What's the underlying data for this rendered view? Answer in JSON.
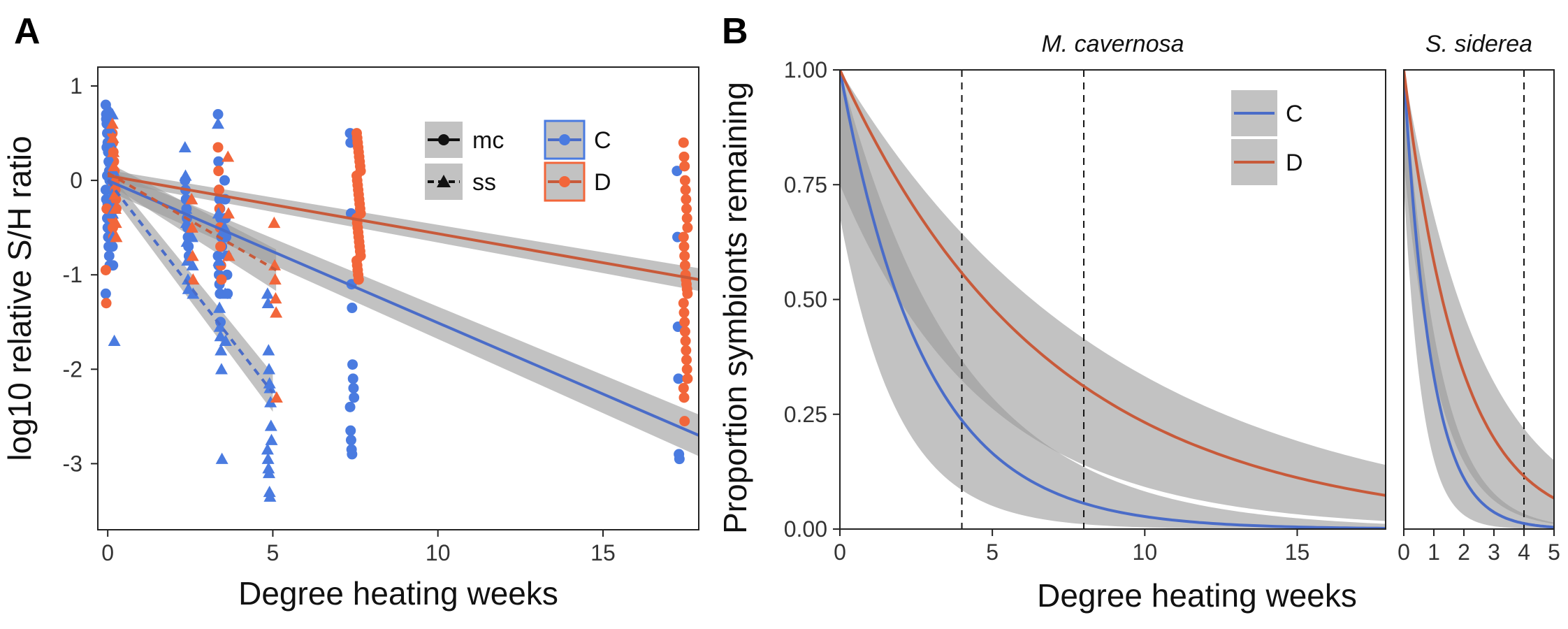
{
  "figure": {
    "panel_a_letter": "A",
    "panel_b_letter": "B"
  },
  "colors": {
    "C": "#4a6cc8",
    "D": "#c85a3a",
    "C_point": "#4a7be0",
    "D_point": "#f2663a",
    "ribbon": "#9a9a9a"
  },
  "chart_data": [
    {
      "id": "A",
      "type": "scatter",
      "title": "",
      "xlabel": "Degree heating weeks",
      "ylabel": "log10 relative S/H ratio",
      "xlim": [
        -0.3,
        17.9
      ],
      "ylim": [
        -3.7,
        1.2
      ],
      "x_ticks": [
        0,
        5,
        10,
        15
      ],
      "y_ticks": [
        1,
        0,
        -1,
        -2,
        -3
      ],
      "grid": false,
      "legend": {
        "placement": "top-right",
        "shape_entries": [
          {
            "label": "mc",
            "line": "solid",
            "marker": "circle"
          },
          {
            "label": "ss",
            "line": "dashed",
            "marker": "triangle"
          }
        ],
        "color_entries": [
          {
            "label": "C",
            "color_key": "C"
          },
          {
            "label": "D",
            "color_key": "D"
          }
        ]
      },
      "points": {
        "C_mc": [
          {
            "x": 0,
            "y": [
              0.8,
              0.7,
              0.6,
              0.5,
              0.4,
              0.3,
              0.2,
              0.1,
              0,
              -0.1,
              -0.2,
              -0.3,
              -0.4,
              -0.5,
              -0.6,
              -0.7,
              -0.8,
              -0.9,
              -1.2,
              0.65,
              0.35,
              0.05,
              -0.25
            ]
          },
          {
            "x": 0.1,
            "y": [
              0.7,
              0.5,
              0.3,
              0.1,
              -0.1,
              -0.3,
              -0.5,
              -0.7,
              -0.9
            ]
          },
          {
            "x": 2.4,
            "y": [
              0,
              -0.1,
              -0.2,
              -0.3,
              -0.4,
              -0.5,
              -0.6,
              -0.7,
              -0.8
            ]
          },
          {
            "x": 3.4,
            "y": [
              0.7,
              0.2,
              -0.1,
              -0.2,
              -0.3,
              -0.4,
              -0.5,
              -0.6,
              -0.7,
              -0.8,
              -0.9,
              -1.0,
              -1.1,
              -1.2,
              -1.5
            ]
          },
          {
            "x": 3.6,
            "y": [
              0,
              -0.2,
              -0.4,
              -0.6,
              -0.8,
              -1.0,
              -1.2
            ]
          },
          {
            "x": 7.4,
            "y": [
              0.5,
              0.4,
              -0.35,
              -1.1,
              -1.35,
              -1.95,
              -2.1,
              -2.2,
              -2.3,
              -2.4,
              -2.65,
              -2.75,
              -2.85,
              -2.9
            ]
          },
          {
            "x": 17.3,
            "y": [
              0.1,
              -0.6,
              -1.55,
              -2.1,
              -2.9,
              -2.95
            ]
          }
        ],
        "D_mc": [
          {
            "x": 0.2,
            "y": [
              0.5,
              0.4,
              0.3,
              0.2,
              0.1,
              0,
              -0.1,
              -0.2,
              -0.3,
              -0.4,
              -0.5,
              -0.6
            ]
          },
          {
            "x": 0,
            "y": [
              -0.95,
              -1.3,
              -0.3
            ]
          },
          {
            "x": 3.4,
            "y": [
              0.35,
              0.1,
              -0.1,
              -0.3,
              -0.5,
              -0.7,
              -0.9,
              -1.05
            ]
          },
          {
            "x": 7.6,
            "y": [
              0.5,
              0.45,
              0.4,
              0.35,
              0.3,
              0.25,
              0.2,
              0.15,
              0.1,
              0.05,
              0,
              -0.05,
              -0.1,
              -0.15,
              -0.2,
              -0.25,
              -0.3,
              -0.35,
              -0.4,
              -0.45,
              -0.5,
              -0.55,
              -0.6,
              -0.65,
              -0.7,
              -0.75,
              -0.8,
              -0.85,
              -0.9,
              -0.95,
              -1.0,
              -1.05
            ]
          },
          {
            "x": 17.5,
            "y": [
              0.4,
              0.25,
              0.15,
              0.0,
              -0.1,
              -0.2,
              -0.3,
              -0.4,
              -0.5,
              -0.6,
              -0.7,
              -0.8,
              -0.9,
              -1.0,
              -1.05,
              -1.1,
              -1.15,
              -1.2,
              -1.3,
              -1.4,
              -1.5,
              -1.6,
              -1.7,
              -1.8,
              -1.9,
              -2.0,
              -2.1,
              -2.2,
              -2.3,
              -2.55
            ]
          }
        ],
        "C_ss": [
          {
            "x": 0.1,
            "y": [
              0.75,
              0.65,
              0.55,
              0.4,
              0.2,
              0.05,
              -0.15,
              -0.35,
              -0.6
            ]
          },
          {
            "x": 0.2,
            "y": [
              0.7,
              0.45,
              0.1,
              -0.3,
              -1.7
            ]
          },
          {
            "x": 2.4,
            "y": [
              0.35,
              0.05,
              -0.3,
              -0.45,
              -0.65,
              -0.85,
              -1.05,
              -1.15
            ]
          },
          {
            "x": 2.6,
            "y": [
              -0.2,
              -0.6,
              -0.9,
              -1.2
            ]
          },
          {
            "x": 3.4,
            "y": [
              0.6,
              -0.35,
              -0.85,
              -1.35,
              -1.55,
              -1.65,
              -1.8,
              -2.0,
              -2.95
            ]
          },
          {
            "x": 3.6,
            "y": [
              -0.5,
              -1.2,
              -1.7
            ]
          },
          {
            "x": 4.9,
            "y": [
              -1.2,
              -1.3,
              -1.8,
              -2.0,
              -2.15,
              -2.2,
              -2.35,
              -2.6,
              -2.75,
              -2.85,
              -2.95,
              -3.05,
              -3.1,
              -3.3,
              -3.35
            ]
          }
        ],
        "D_ss": [
          {
            "x": 0.2,
            "y": [
              0.6,
              0.45,
              0.3,
              0.15,
              0,
              -0.15,
              -0.3,
              -0.45,
              -0.6
            ]
          },
          {
            "x": 2.6,
            "y": [
              -0.2,
              -0.5,
              -0.8,
              -1.05
            ]
          },
          {
            "x": 3.7,
            "y": [
              0.25,
              -0.35,
              -0.8
            ]
          },
          {
            "x": 5.1,
            "y": [
              -0.45,
              -0.9,
              -1.05,
              -1.25,
              -1.4,
              -2.3
            ]
          }
        ]
      },
      "fits": [
        {
          "group": "D_mc",
          "line": "solid",
          "x": [
            0,
            17.9
          ],
          "y": [
            0.05,
            -1.05
          ],
          "band": 0.12
        },
        {
          "group": "C_mc",
          "line": "solid",
          "x": [
            0,
            17.9
          ],
          "y": [
            0.0,
            -2.7
          ],
          "band": 0.22
        },
        {
          "group": "D_ss",
          "line": "dashed",
          "x": [
            0,
            5.1
          ],
          "y": [
            0.08,
            -0.95
          ],
          "band": 0.22
        },
        {
          "group": "C_ss",
          "line": "dashed",
          "x": [
            0,
            5.0
          ],
          "y": [
            0.0,
            -2.25
          ],
          "band": 0.2
        }
      ]
    },
    {
      "id": "B1",
      "type": "line",
      "title": "M. cavernosa",
      "xlabel": "Degree heating weeks",
      "ylabel": "Proportion symbionts remaining",
      "xlim": [
        0,
        17.9
      ],
      "ylim": [
        0,
        1
      ],
      "x_ticks": [
        0,
        5,
        10,
        15
      ],
      "y_ticks": [
        "0.00",
        "0.25",
        "0.50",
        "0.75",
        "1.00"
      ],
      "vlines": [
        4,
        8
      ],
      "grid": false,
      "legend": {
        "placement": "top-right",
        "entries": [
          "C",
          "D"
        ]
      },
      "series": [
        {
          "name": "C",
          "model": "exp",
          "k": 0.36,
          "k_lo": 0.25,
          "k_hi": 0.52,
          "start_lo": 0.68,
          "start_hi": 1.0
        },
        {
          "name": "D",
          "model": "exp",
          "k": 0.146,
          "k_lo": 0.11,
          "k_hi": 0.21,
          "start_lo": 0.75,
          "start_hi": 1.0
        }
      ]
    },
    {
      "id": "B2",
      "type": "line",
      "title": "S. siderea",
      "xlim": [
        0,
        5
      ],
      "ylim": [
        0,
        1
      ],
      "x_ticks": [
        0,
        1,
        2,
        3,
        4,
        5
      ],
      "vlines": [
        4
      ],
      "grid": false,
      "series": [
        {
          "name": "C",
          "model": "exp",
          "k": 1.1,
          "k_lo": 0.85,
          "k_hi": 1.6,
          "start_lo": 0.75,
          "start_hi": 1.0
        },
        {
          "name": "D",
          "model": "exp",
          "k": 0.54,
          "k_lo": 0.38,
          "k_hi": 0.85,
          "start_lo": 0.8,
          "start_hi": 1.0
        }
      ]
    }
  ]
}
